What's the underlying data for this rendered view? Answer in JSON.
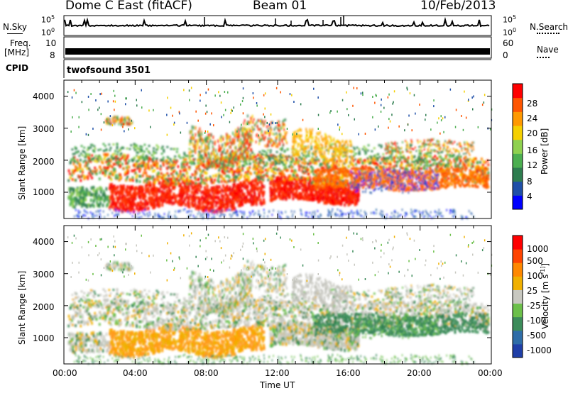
{
  "header": {
    "station": "Dome C East (fitACF)",
    "beam": "Beam 01",
    "date": "10/Feb/2013"
  },
  "noise_panel": {
    "left_label": "N.Sky",
    "right_label": "N.Search",
    "tick_top": "10^5",
    "tick_bottom": "10^0"
  },
  "freq_panel": {
    "left_label_1": "Freq.",
    "left_label_2": "[MHz]",
    "right_label": "Nave",
    "left_ticks": [
      "10",
      "8"
    ],
    "right_ticks": [
      "60",
      "0"
    ]
  },
  "cpid_panel": {
    "label": "CPID",
    "program": "twofsound 3501"
  },
  "chart_data": [
    {
      "type": "heatmap",
      "name": "power",
      "ylabel": "Slant Range [km]",
      "yticks": [
        "4000",
        "3000",
        "2000",
        "1000"
      ],
      "ylim": [
        180,
        4500
      ],
      "xlim": [
        0,
        24
      ],
      "colorbar_label": "Power [dB]",
      "colorbar_ticks": [
        "28",
        "24",
        "20",
        "16",
        "12",
        "8",
        "4"
      ],
      "colorbar_colors": [
        "#0000ff",
        "#1f4fa8",
        "#2e7d4f",
        "#4caf50",
        "#8fd14f",
        "#f5d000",
        "#ff9900",
        "#ff5500",
        "#ff0000"
      ]
    },
    {
      "type": "heatmap",
      "name": "velocity",
      "ylabel": "Slant Range [km]",
      "yticks": [
        "4000",
        "3000",
        "2000",
        "1000"
      ],
      "ylim": [
        180,
        4500
      ],
      "xlim": [
        0,
        24
      ],
      "colorbar_label": "Velocity  [m s^-1]",
      "colorbar_ticks": [
        "1000",
        "500",
        "100",
        "25",
        "-25",
        "-100",
        "-500",
        "-1000"
      ],
      "colorbar_colors": [
        "#1f3fa8",
        "#2e6da8",
        "#3c8c5a",
        "#6cc04a",
        "#c8c8c0",
        "#f0b000",
        "#ff8800",
        "#ff4400",
        "#ff0000"
      ]
    }
  ],
  "x_axis": {
    "ticks": [
      "00:00",
      "04:00",
      "08:00",
      "12:00",
      "16:00",
      "20:00",
      "00:00"
    ],
    "label": "Time UT"
  }
}
